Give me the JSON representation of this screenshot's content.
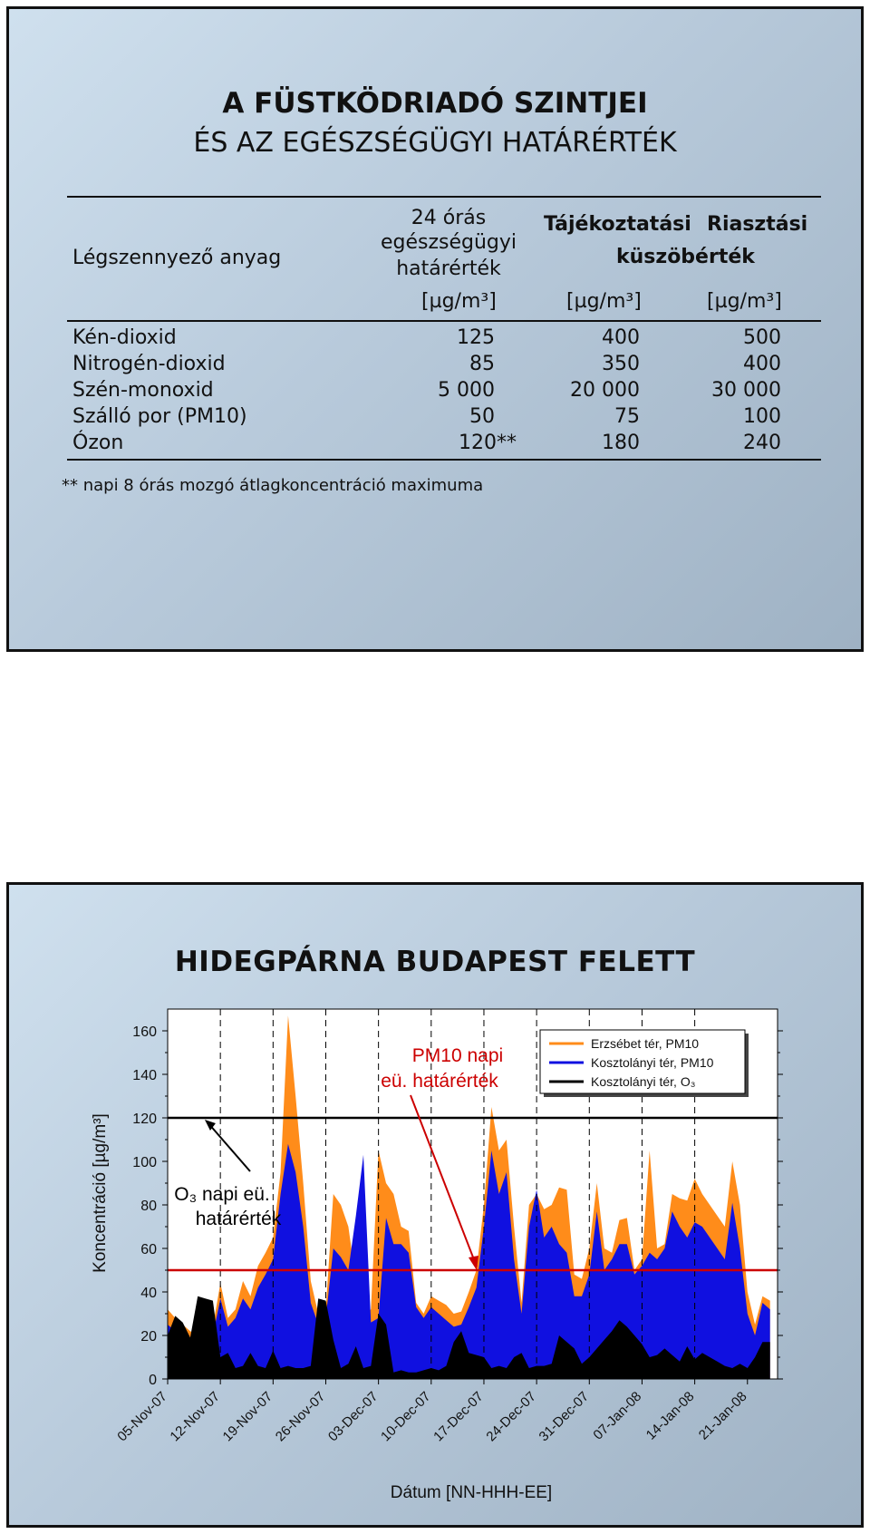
{
  "slide1": {
    "title": "A FÜSTKÖDRIADÓ SZINTJEI",
    "subtitle": "ÉS AZ EGÉSZSÉGÜGYI HATÁRÉRTÉK",
    "headers": {
      "pollutant": "Légszennyező anyag",
      "col1_line1": "24 órás",
      "col1_line2": "egészségügyi",
      "col1_line3": "határérték",
      "col2": "Tájékoztatási",
      "col3": "Riasztási",
      "threshold": "küszöbérték",
      "unit": "[µg/m³]"
    },
    "rows": [
      {
        "name": "Kén-dioxid",
        "health": "125",
        "info": "400",
        "alarm": "500"
      },
      {
        "name": "Nitrogén-dioxid",
        "health": "85",
        "info": "350",
        "alarm": "400"
      },
      {
        "name": "Szén-monoxid",
        "health": "5 000",
        "info": "20 000",
        "alarm": "30 000"
      },
      {
        "name": "Szálló por (PM10)",
        "health": "50",
        "info": "75",
        "alarm": "100"
      },
      {
        "name": "Ózon",
        "health": "120**",
        "info": "180",
        "alarm": "240"
      }
    ],
    "footnote": "** napi 8 órás mozgó átlagkoncentráció maximuma"
  },
  "chart_data": {
    "type": "area",
    "title": "HIDEGPÁRNA BUDAPEST FELETT",
    "xlabel": "Dátum   [NN-HHH-EE]",
    "ylabel": "Koncentráció   [µg/m³]",
    "ylim": [
      0,
      170
    ],
    "yticks": [
      0,
      20,
      40,
      60,
      80,
      100,
      120,
      140,
      160
    ],
    "xlim": [
      "2007-11-05",
      "2008-01-25"
    ],
    "xticks": [
      "05-Nov-07",
      "12-Nov-07",
      "19-Nov-07",
      "26-Nov-07",
      "03-Dec-07",
      "10-Dec-07",
      "17-Dec-07",
      "24-Dec-07",
      "31-Dec-07",
      "07-Jan-08",
      "14-Jan-08",
      "21-Jan-08"
    ],
    "weekend_dashed_lines": [
      "2007-11-12",
      "2007-11-19",
      "2007-11-26",
      "2007-12-03",
      "2007-12-10",
      "2007-12-17",
      "2007-12-24",
      "2007-12-31",
      "2008-01-07",
      "2008-01-14"
    ],
    "thresholds": [
      {
        "value": 120,
        "color": "#000000"
      },
      {
        "value": 50,
        "color": "#cc0000"
      }
    ],
    "annotations": [
      {
        "text_line1": "PM10 napi",
        "text_line2": "eü. határérték",
        "color": "#cc0000",
        "points_to": {
          "x": "2007-12-17",
          "y": 50
        }
      },
      {
        "text_line1": "O₃ napi eü.",
        "text_line2": "határérték",
        "color": "#000000",
        "points_to": {
          "x": "2007-11-08",
          "y": 120
        }
      }
    ],
    "legend": {
      "position": "top-right"
    },
    "series": [
      {
        "name": "Erzsébet tér, PM10",
        "color": "#ff8c1a",
        "x": [
          "2007-11-05",
          "2007-11-06",
          "2007-11-07",
          "2007-11-08",
          "2007-11-09",
          "2007-11-10",
          "2007-11-11",
          "2007-11-12",
          "2007-11-13",
          "2007-11-14",
          "2007-11-15",
          "2007-11-16",
          "2007-11-17",
          "2007-11-18",
          "2007-11-19",
          "2007-11-20",
          "2007-11-21",
          "2007-11-22",
          "2007-11-23",
          "2007-11-24",
          "2007-11-25",
          "2007-11-26",
          "2007-11-27",
          "2007-11-28",
          "2007-11-29",
          "2007-11-30",
          "2007-12-01",
          "2007-12-02",
          "2007-12-03",
          "2007-12-04",
          "2007-12-05",
          "2007-12-06",
          "2007-12-07",
          "2007-12-08",
          "2007-12-09",
          "2007-12-10",
          "2007-12-11",
          "2007-12-12",
          "2007-12-13",
          "2007-12-14",
          "2007-12-15",
          "2007-12-16",
          "2007-12-17",
          "2007-12-18",
          "2007-12-19",
          "2007-12-20",
          "2007-12-21",
          "2007-12-22",
          "2007-12-23",
          "2007-12-24",
          "2007-12-25",
          "2007-12-26",
          "2007-12-27",
          "2007-12-28",
          "2007-12-29",
          "2007-12-30",
          "2007-12-31",
          "2008-01-01",
          "2008-01-02",
          "2008-01-03",
          "2008-01-04",
          "2008-01-05",
          "2008-01-06",
          "2008-01-07",
          "2008-01-08",
          "2008-01-09",
          "2008-01-10",
          "2008-01-11",
          "2008-01-12",
          "2008-01-13",
          "2008-01-14",
          "2008-01-15",
          "2008-01-16",
          "2008-01-17",
          "2008-01-18",
          "2008-01-19",
          "2008-01-20",
          "2008-01-21",
          "2008-01-22",
          "2008-01-23",
          "2008-01-24"
        ],
        "values": [
          32,
          28,
          25,
          22,
          20,
          22,
          24,
          44,
          28,
          32,
          45,
          38,
          52,
          58,
          65,
          95,
          167,
          130,
          90,
          45,
          30,
          32,
          85,
          80,
          70,
          45,
          30,
          32,
          105,
          90,
          85,
          70,
          68,
          35,
          30,
          38,
          36,
          34,
          30,
          31,
          40,
          50,
          80,
          125,
          105,
          110,
          70,
          35,
          80,
          85,
          78,
          80,
          88,
          87,
          48,
          46,
          60,
          90,
          60,
          58,
          73,
          74,
          50,
          55,
          105,
          60,
          62,
          85,
          83,
          82,
          92,
          85,
          80,
          75,
          70,
          100,
          80,
          40,
          25,
          38,
          36
        ]
      },
      {
        "name": "Kosztolányi tér, PM10",
        "color": "#1010e0",
        "x": [
          "2007-11-05",
          "2007-11-06",
          "2007-11-07",
          "2007-11-08",
          "2007-11-09",
          "2007-11-10",
          "2007-11-11",
          "2007-11-12",
          "2007-11-13",
          "2007-11-14",
          "2007-11-15",
          "2007-11-16",
          "2007-11-17",
          "2007-11-18",
          "2007-11-19",
          "2007-11-20",
          "2007-11-21",
          "2007-11-22",
          "2007-11-23",
          "2007-11-24",
          "2007-11-25",
          "2007-11-26",
          "2007-11-27",
          "2007-11-28",
          "2007-11-29",
          "2007-11-30",
          "2007-12-01",
          "2007-12-02",
          "2007-12-03",
          "2007-12-04",
          "2007-12-05",
          "2007-12-06",
          "2007-12-07",
          "2007-12-08",
          "2007-12-09",
          "2007-12-10",
          "2007-12-11",
          "2007-12-12",
          "2007-12-13",
          "2007-12-14",
          "2007-12-15",
          "2007-12-16",
          "2007-12-17",
          "2007-12-18",
          "2007-12-19",
          "2007-12-20",
          "2007-12-21",
          "2007-12-22",
          "2007-12-23",
          "2007-12-24",
          "2007-12-25",
          "2007-12-26",
          "2007-12-27",
          "2007-12-28",
          "2007-12-29",
          "2007-12-30",
          "2007-12-31",
          "2008-01-01",
          "2008-01-02",
          "2008-01-03",
          "2008-01-04",
          "2008-01-05",
          "2008-01-06",
          "2008-01-07",
          "2008-01-08",
          "2008-01-09",
          "2008-01-10",
          "2008-01-11",
          "2008-01-12",
          "2008-01-13",
          "2008-01-14",
          "2008-01-15",
          "2008-01-16",
          "2008-01-17",
          "2008-01-18",
          "2008-01-19",
          "2008-01-20",
          "2008-01-21",
          "2008-01-22",
          "2008-01-23",
          "2008-01-24"
        ],
        "values": [
          25,
          22,
          20,
          18,
          16,
          18,
          20,
          37,
          24,
          28,
          37,
          32,
          42,
          48,
          55,
          85,
          108,
          95,
          70,
          35,
          25,
          28,
          60,
          56,
          50,
          75,
          103,
          26,
          28,
          74,
          62,
          62,
          58,
          33,
          28,
          33,
          30,
          27,
          24,
          25,
          33,
          42,
          70,
          105,
          85,
          95,
          55,
          30,
          70,
          87,
          65,
          70,
          62,
          58,
          38,
          38,
          48,
          77,
          50,
          55,
          62,
          62,
          48,
          52,
          58,
          55,
          60,
          77,
          70,
          65,
          72,
          70,
          65,
          60,
          55,
          81,
          60,
          30,
          20,
          35,
          32
        ]
      },
      {
        "name": "Kosztolányi tér, O₃",
        "color": "#000000",
        "x": [
          "2007-11-05",
          "2007-11-06",
          "2007-11-07",
          "2007-11-08",
          "2007-11-09",
          "2007-11-10",
          "2007-11-11",
          "2007-11-12",
          "2007-11-13",
          "2007-11-14",
          "2007-11-15",
          "2007-11-16",
          "2007-11-17",
          "2007-11-18",
          "2007-11-19",
          "2007-11-20",
          "2007-11-21",
          "2007-11-22",
          "2007-11-23",
          "2007-11-24",
          "2007-11-25",
          "2007-11-26",
          "2007-11-27",
          "2007-11-28",
          "2007-11-29",
          "2007-11-30",
          "2007-12-01",
          "2007-12-02",
          "2007-12-03",
          "2007-12-04",
          "2007-12-05",
          "2007-12-06",
          "2007-12-07",
          "2007-12-08",
          "2007-12-09",
          "2007-12-10",
          "2007-12-11",
          "2007-12-12",
          "2007-12-13",
          "2007-12-14",
          "2007-12-15",
          "2007-12-16",
          "2007-12-17",
          "2007-12-18",
          "2007-12-19",
          "2007-12-20",
          "2007-12-21",
          "2007-12-22",
          "2007-12-23",
          "2007-12-24",
          "2007-12-25",
          "2007-12-26",
          "2007-12-27",
          "2007-12-28",
          "2007-12-29",
          "2007-12-30",
          "2007-12-31",
          "2008-01-01",
          "2008-01-02",
          "2008-01-03",
          "2008-01-04",
          "2008-01-05",
          "2008-01-06",
          "2008-01-07",
          "2008-01-08",
          "2008-01-09",
          "2008-01-10",
          "2008-01-11",
          "2008-01-12",
          "2008-01-13",
          "2008-01-14",
          "2008-01-15",
          "2008-01-16",
          "2008-01-17",
          "2008-01-18",
          "2008-01-19",
          "2008-01-20",
          "2008-01-21",
          "2008-01-22",
          "2008-01-23",
          "2008-01-24"
        ],
        "values": [
          20,
          29,
          26,
          19,
          38,
          37,
          36,
          10,
          12,
          5,
          6,
          12,
          6,
          5,
          13,
          5,
          6,
          5,
          5,
          6,
          37,
          36,
          18,
          5,
          7,
          15,
          5,
          6,
          30,
          25,
          3,
          4,
          3,
          3,
          4,
          5,
          4,
          6,
          17,
          22,
          12,
          11,
          10,
          5,
          6,
          5,
          10,
          12,
          5,
          6,
          6,
          7,
          20,
          17,
          14,
          7,
          10,
          14,
          18,
          22,
          27,
          24,
          20,
          16,
          10,
          11,
          14,
          11,
          8,
          15,
          9,
          12,
          10,
          8,
          6,
          5,
          7,
          5,
          10,
          17,
          17
        ]
      }
    ]
  }
}
